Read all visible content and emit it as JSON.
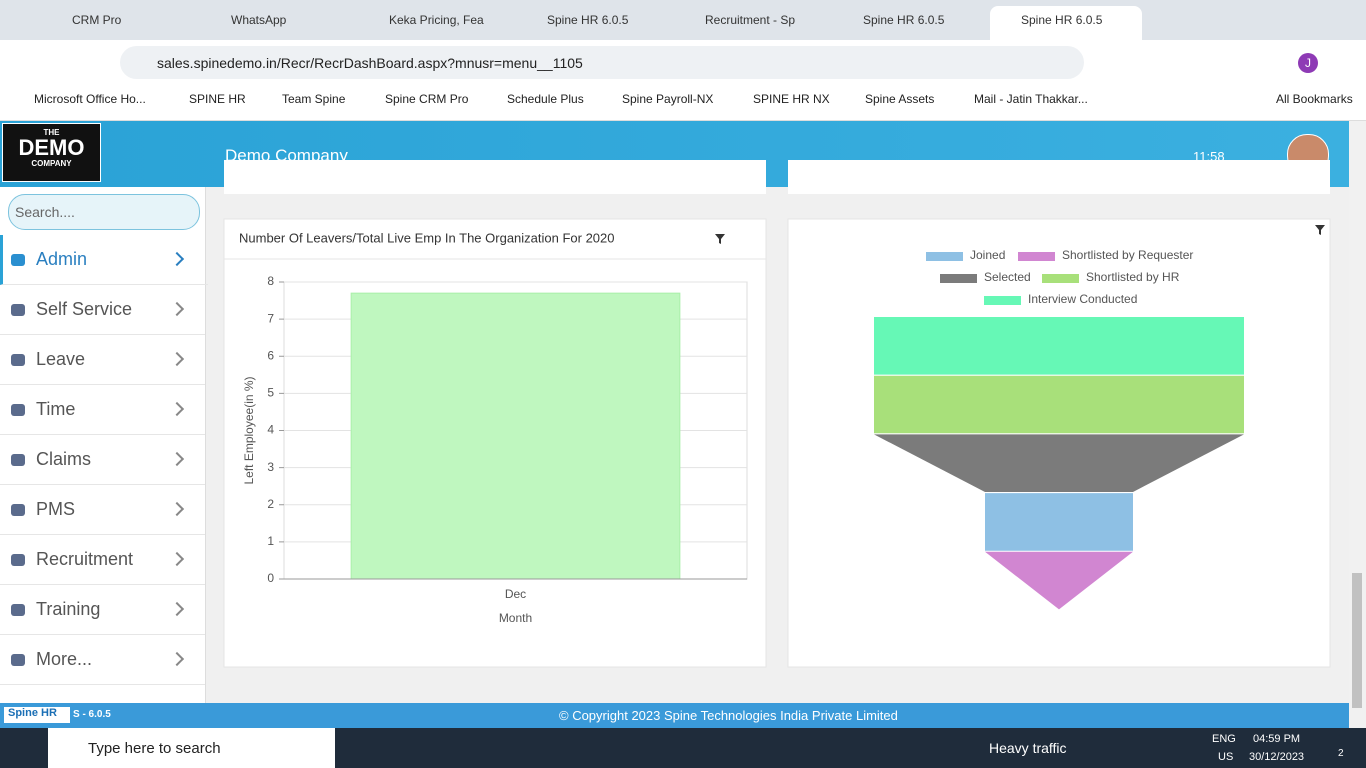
{
  "browser": {
    "tabs": [
      "CRM Pro",
      "WhatsApp",
      "Keka Pricing, Fea",
      "Spine HR 6.0.5",
      "Recruitment - Sp",
      "Spine HR 6.0.5",
      "Spine HR 6.0.5"
    ],
    "url": "sales.spinedemo.in/Recr/RecrDashBoard.aspx?mnusr=menu__1105",
    "bookmarks": [
      "Microsoft Office Ho...",
      "SPINE HR",
      "Team Spine",
      "Spine CRM Pro",
      "Schedule Plus",
      "Spine Payroll-NX",
      "SPINE HR NX",
      "Spine Assets",
      "Mail - Jatin Thakkar..."
    ],
    "all_bookmarks": "All Bookmarks",
    "profile": "J"
  },
  "app": {
    "logo": [
      "THE",
      "DEMO",
      "COMPANY"
    ],
    "company": "Demo Company",
    "time": "11:58",
    "search_placeholder": "Search....",
    "menu": [
      "Admin",
      "Self Service",
      "Leave",
      "Time",
      "Claims",
      "PMS",
      "Recruitment",
      "Training",
      "More..."
    ],
    "footer_brand": "Spine HR",
    "version": "S - 6.0.5",
    "copyright": "© Copyright 2023 Spine Technologies India Private Limited"
  },
  "chart_data": [
    {
      "type": "bar",
      "title": "Number Of Leavers/Total Live Emp In The Organization For 2020",
      "categories": [
        "Dec"
      ],
      "values": [
        7.7
      ],
      "color": "#bff7bf",
      "x_label": "Month",
      "y_label": "Left Employee(in %)",
      "ylim": [
        0,
        8
      ],
      "yticks": [
        0,
        1,
        2,
        3,
        4,
        5,
        6,
        7,
        8
      ],
      "grid": true
    },
    {
      "type": "funnel",
      "series": [
        {
          "name": "Interview Conducted",
          "color": "#66f8b6",
          "value": 5
        },
        {
          "name": "Shortlisted by HR",
          "color": "#a8e07a",
          "value": 5
        },
        {
          "name": "Selected",
          "color": "#7b7b7b",
          "value": 5
        },
        {
          "name": "Joined",
          "color": "#8ec0e4",
          "value": 2
        },
        {
          "name": "Shortlisted by Requester",
          "color": "#d186d1",
          "value": 2
        }
      ]
    }
  ],
  "taskbar": {
    "search": "Type here to search",
    "weather": "Heavy traffic",
    "lang": [
      "ENG",
      "US"
    ],
    "time": "04:59 PM",
    "date": "30/12/2023",
    "notifications": "2"
  }
}
